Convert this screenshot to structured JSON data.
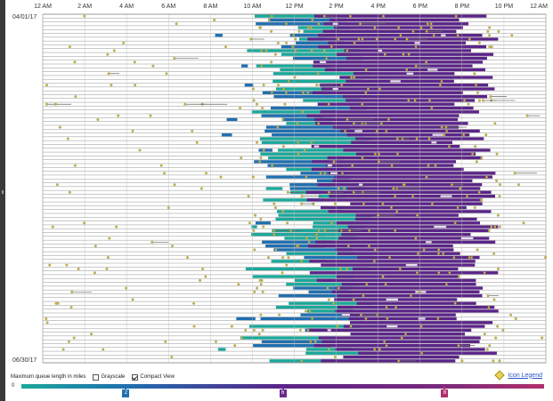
{
  "chart_data": {
    "type": "timeline",
    "x_ticks": [
      "12 AM",
      "2 AM",
      "4 AM",
      "6 AM",
      "8 AM",
      "10 AM",
      "12 PM",
      "2 PM",
      "4 PM",
      "6 PM",
      "8 PM",
      "10 PM",
      "12 AM"
    ],
    "x_range_hours": [
      0,
      24
    ],
    "date_start": "04/01/17",
    "date_end": "06/30/17",
    "row_count": 91,
    "grid": true,
    "dense_band": [
      {
        "hour_start": 13.8,
        "hour_end": 20.2,
        "color_name": "purple"
      },
      {
        "hour_start": 10.2,
        "hour_end": 13.8,
        "color_name": "teal/blue"
      }
    ],
    "queue_scale": {
      "min_label": "0",
      "markers": [
        {
          "label": "2",
          "position_fraction": 0.2,
          "color": "#1f6fb0"
        },
        {
          "label": "6",
          "position_fraction": 0.5,
          "color": "#6a2a8c"
        },
        {
          "label": "8",
          "position_fraction": 0.81,
          "color": "#b0306a"
        }
      ]
    }
  },
  "colors": {
    "teal": "#1aa89a",
    "blue": "#1f6fb0",
    "purple": "#5a2488",
    "magenta": "#a8306a",
    "incident_icon": "#c8b84a",
    "grid": "#555555"
  },
  "controls": {
    "queue_label": "Maximum queue length in miles",
    "grayscale_label": "Grayscale",
    "grayscale_checked": false,
    "compact_label": "Compact View",
    "compact_checked": true,
    "icon_legend_label": "Icon Legend"
  }
}
